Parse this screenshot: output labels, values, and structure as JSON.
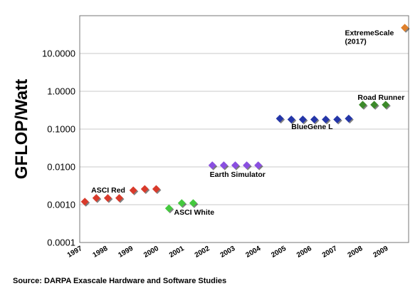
{
  "chart_data": {
    "type": "scatter",
    "ylabel": "GFLOP/Watt",
    "yscale": "log",
    "ylim": [
      0.0001,
      100
    ],
    "yticks": [
      "0.0001",
      "0.0010",
      "0.0100",
      "0.1000",
      "1.0000",
      "10.0000"
    ],
    "xlim": [
      1997,
      2009.9
    ],
    "xticks": [
      "1997",
      "1998",
      "1999",
      "2000",
      "2001",
      "2002",
      "2003",
      "2004",
      "2005",
      "2006",
      "2007",
      "2008",
      "2009"
    ],
    "grid": "horizontal",
    "legend": "none",
    "series": [
      {
        "color": "#d93a2b",
        "points": [
          [
            1997.2,
            0.0012
          ],
          [
            1997.65,
            0.0015
          ],
          [
            1998.1,
            0.0015
          ],
          [
            1998.55,
            0.0015
          ],
          [
            1999.1,
            0.0024
          ],
          [
            1999.55,
            0.0026
          ],
          [
            2000.0,
            0.0026
          ]
        ]
      },
      {
        "color": "#44c93e",
        "points": [
          [
            2000.5,
            0.0008
          ],
          [
            2001.0,
            0.0011
          ],
          [
            2001.45,
            0.0011
          ]
        ]
      },
      {
        "color": "#8a4fe0",
        "points": [
          [
            2002.2,
            0.011
          ],
          [
            2002.65,
            0.011
          ],
          [
            2003.1,
            0.011
          ],
          [
            2003.55,
            0.011
          ],
          [
            2004.0,
            0.011
          ]
        ]
      },
      {
        "color": "#2436a8",
        "points": [
          [
            2004.85,
            0.19
          ],
          [
            2005.3,
            0.18
          ],
          [
            2005.75,
            0.18
          ],
          [
            2006.2,
            0.18
          ],
          [
            2006.65,
            0.18
          ],
          [
            2007.1,
            0.18
          ],
          [
            2007.55,
            0.19
          ]
        ]
      },
      {
        "color": "#3c8a2a",
        "points": [
          [
            2008.1,
            0.44
          ],
          [
            2008.55,
            0.44
          ],
          [
            2009.0,
            0.44
          ]
        ]
      },
      {
        "color": "#e0802b",
        "points": [
          [
            2009.75,
            48
          ]
        ]
      }
    ],
    "annotations": [
      {
        "text": "ASCI Red",
        "x": 1997.45,
        "y": 0.0021
      },
      {
        "text": "ASCI White",
        "x": 2000.7,
        "y": 0.00055
      },
      {
        "text": "Earth Simulator",
        "x": 2002.1,
        "y": 0.0055
      },
      {
        "text": "BlueGene L",
        "x": 2005.3,
        "y": 0.1
      },
      {
        "text": "Road Runner",
        "x": 2007.9,
        "y": 0.6
      },
      {
        "text": "ExtremeScale",
        "x": 2007.4,
        "y": 30
      },
      {
        "text": "(2017)",
        "x": 2007.4,
        "y": 18
      }
    ]
  },
  "source": "Source: DARPA Exascale Hardware and Software Studies"
}
